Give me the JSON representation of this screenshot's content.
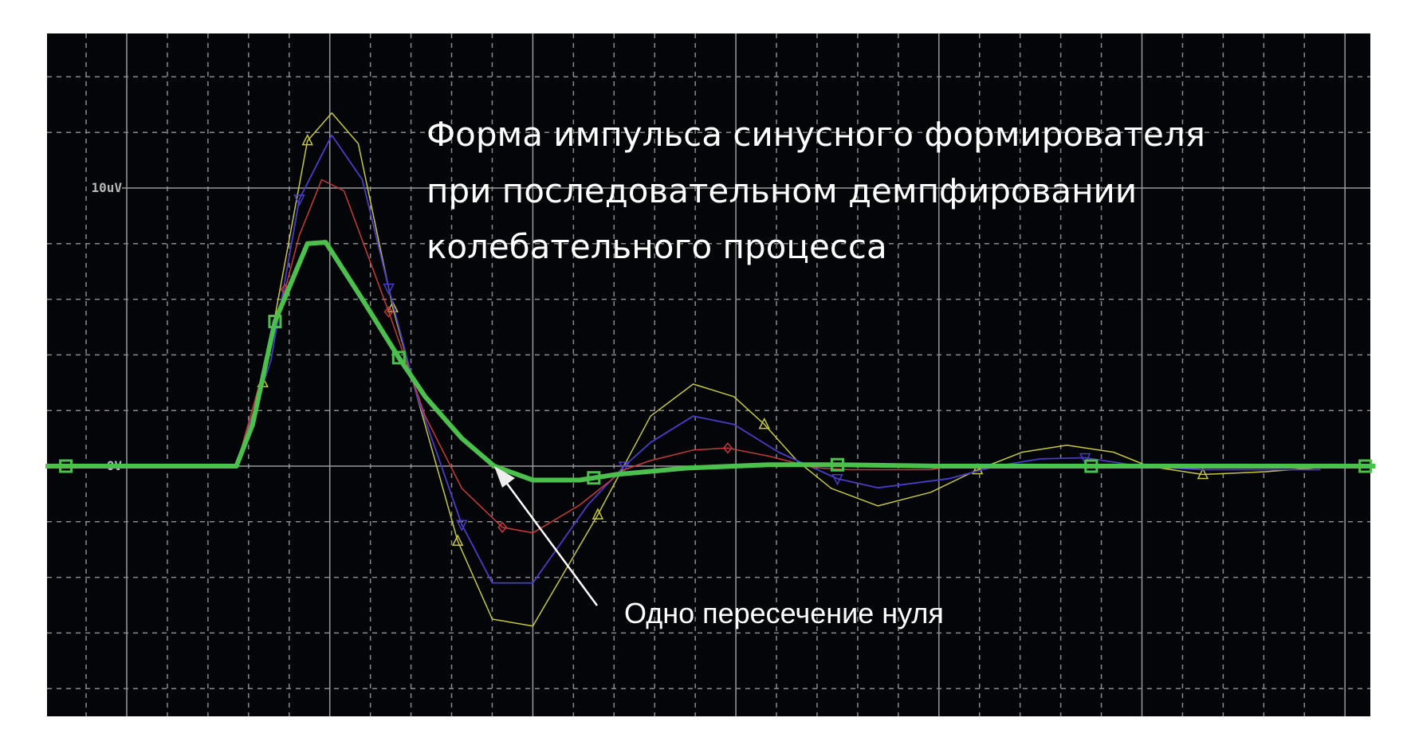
{
  "chart_data": {
    "type": "line",
    "title_lines": [
      "Форма импульса синусного формирователя",
      "при последовательном демпфировании",
      "колебательного процесса"
    ],
    "annotation": "Одно пересечение нуля",
    "xlabel": "",
    "ylabel": "",
    "y_tick_labels": [
      {
        "value": 10,
        "label": "10uV"
      },
      {
        "value": 0,
        "label": "0V"
      }
    ],
    "y_unit": "uV",
    "ylim": [
      -9,
      15.5
    ],
    "xlim_divisions": [
      -0.4,
      6.15
    ],
    "grid": true,
    "background": "#030508",
    "series": [
      {
        "color": "#c8c83a",
        "marker": "triangle-up",
        "width": 1.5,
        "x": [
          -0.4,
          0.54,
          0.67,
          0.89,
          1.01,
          1.14,
          1.31,
          1.43,
          1.63,
          1.8,
          2.0,
          2.32,
          2.58,
          2.79,
          2.99,
          3.14,
          3.3,
          3.47,
          3.7,
          3.96,
          4.19,
          4.41,
          4.63,
          4.86,
          5.03,
          5.3,
          5.61,
          5.88
        ],
        "y": [
          0,
          0,
          3,
          11.7,
          12.7,
          11.6,
          5.7,
          2.5,
          -2.7,
          -5.5,
          -5.75,
          -1.75,
          1.8,
          2.95,
          2.5,
          1.5,
          0.2,
          -0.8,
          -1.43,
          -0.94,
          -0.13,
          0.5,
          0.75,
          0.5,
          0,
          -0.3,
          -0.2,
          -0.05
        ],
        "markers": [
          0.67,
          0.89,
          1.31,
          1.63,
          2.32,
          3.14,
          4.19,
          5.3
        ]
      },
      {
        "color": "#4a3cc8",
        "marker": "triangle-down",
        "width": 1.8,
        "x": [
          -0.4,
          0.54,
          0.71,
          0.85,
          1.01,
          1.16,
          1.29,
          1.43,
          1.65,
          1.8,
          2.0,
          2.27,
          2.45,
          2.58,
          2.79,
          2.99,
          3.21,
          3.5,
          3.7,
          4.05,
          4.28,
          4.5,
          4.72,
          4.99,
          5.3,
          5.88
        ],
        "y": [
          0,
          0,
          3.8,
          9.6,
          11.9,
          10.3,
          6.4,
          2.5,
          -2.1,
          -4.2,
          -4.2,
          -1.4,
          0,
          0.85,
          1.8,
          1.5,
          0.5,
          -0.45,
          -0.78,
          -0.45,
          0,
          0.26,
          0.3,
          0,
          -0.13,
          -0.13
        ],
        "markers": [
          0.85,
          1.29,
          1.65,
          2.45,
          3.5,
          4.72
        ]
      },
      {
        "color": "#c83a3a",
        "marker": "diamond",
        "width": 1.5,
        "x": [
          -0.4,
          0.54,
          0.71,
          0.85,
          0.96,
          1.07,
          1.29,
          1.47,
          1.65,
          1.85,
          2.0,
          2.23,
          2.45,
          2.58,
          2.79,
          2.96,
          3.16,
          3.39,
          3.56,
          3.96,
          4.05,
          6.15
        ],
        "y": [
          0,
          0,
          4.4,
          8.3,
          10.3,
          9.9,
          5.55,
          1.8,
          -0.8,
          -2.2,
          -2.4,
          -1.4,
          -0.13,
          0.2,
          0.58,
          0.65,
          0.36,
          -0.06,
          -0.13,
          -0.13,
          0,
          0
        ],
        "markers": [
          0.78,
          1.29,
          1.85,
          2.96
        ]
      },
      {
        "color": "#4cc04c",
        "marker": "square",
        "width": 6,
        "x": [
          -0.4,
          0.54,
          0.62,
          0.73,
          0.89,
          0.98,
          1.16,
          1.34,
          1.47,
          1.65,
          1.81,
          2.0,
          2.23,
          2.41,
          2.76,
          3.16,
          3.5,
          4.0,
          6.15
        ],
        "y": [
          0,
          0,
          1.5,
          5.2,
          8.0,
          8.05,
          6.0,
          3.9,
          2.5,
          1.0,
          0,
          -0.5,
          -0.5,
          -0.3,
          -0.07,
          0.05,
          0.05,
          0,
          0
        ],
        "markers": [
          -0.3,
          0.73,
          1.34,
          2.3,
          3.5,
          4.75,
          6.1
        ]
      }
    ]
  }
}
